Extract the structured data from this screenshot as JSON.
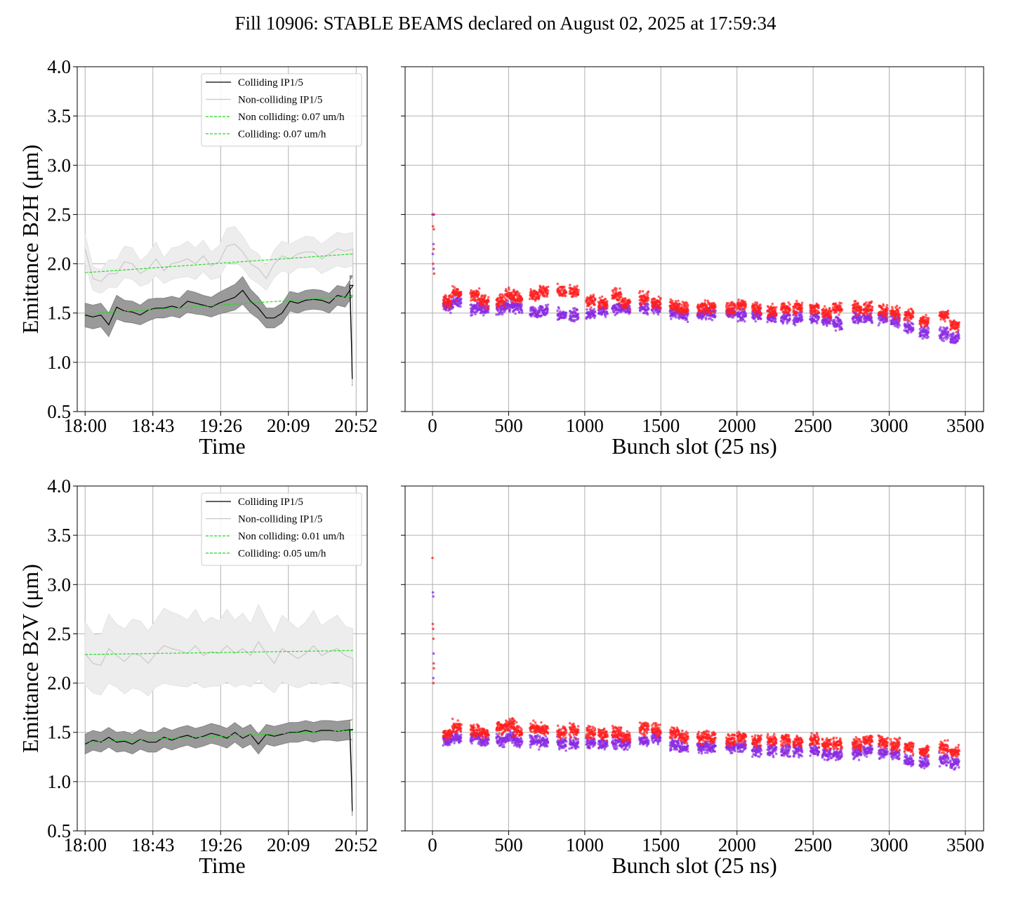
{
  "figure_title": "Fill 10906: STABLE BEAMS declared on August 02, 2025 at 17:59:34",
  "colors": {
    "colliding": "#000000",
    "colliding_band": "#9a9a9a",
    "noncolliding": "#c8c8c8",
    "noncolliding_band": "#ededed",
    "fit": "#22dd22",
    "scatter_a": "#ff2020",
    "scatter_b": "#8a2be2",
    "grid": "#b0b0b0"
  },
  "chart_data": [
    {
      "type": "line",
      "panel": "top-left",
      "xlabel": "Time",
      "ylabel": "Emittance B2H (μm)",
      "ylim": [
        0.5,
        4.0
      ],
      "yticks": [
        "0.5",
        "1.0",
        "1.5",
        "2.0",
        "2.5",
        "3.0",
        "3.5",
        "4.0"
      ],
      "xticks": [
        "18:00",
        "18:43",
        "19:26",
        "20:09",
        "20:52"
      ],
      "xlim_minutes": [
        -5,
        179
      ],
      "tick_minutes": [
        0,
        43,
        86,
        129,
        172
      ],
      "grid": true,
      "legend_position": "upper-center",
      "legend": [
        "Colliding IP1/5",
        "Non-colliding IP1/5",
        "Non colliding: 0.07 um/h",
        "Colliding: 0.07 um/h"
      ],
      "series": [
        {
          "name": "Colliding IP1/5",
          "x_minutes": [
            0,
            5,
            10,
            15,
            20,
            25,
            30,
            35,
            40,
            45,
            50,
            55,
            60,
            65,
            70,
            75,
            80,
            85,
            90,
            95,
            100,
            105,
            110,
            115,
            120,
            125,
            130,
            135,
            140,
            145,
            150,
            155,
            160,
            165,
            170,
            168,
            169,
            169.5
          ],
          "y": [
            1.48,
            1.46,
            1.48,
            1.38,
            1.56,
            1.52,
            1.51,
            1.48,
            1.53,
            1.55,
            1.55,
            1.57,
            1.55,
            1.62,
            1.6,
            1.58,
            1.56,
            1.6,
            1.63,
            1.66,
            1.73,
            1.62,
            1.55,
            1.45,
            1.45,
            1.5,
            1.62,
            1.6,
            1.63,
            1.64,
            1.63,
            1.6,
            1.68,
            1.66,
            1.78,
            1.78,
            1.2,
            0.83
          ],
          "band": [
            0.12,
            0.12,
            0.12,
            0.12,
            0.12,
            0.11,
            0.11,
            0.1,
            0.11,
            0.1,
            0.1,
            0.1,
            0.1,
            0.11,
            0.11,
            0.1,
            0.1,
            0.11,
            0.12,
            0.13,
            0.14,
            0.12,
            0.11,
            0.1,
            0.1,
            0.1,
            0.1,
            0.1,
            0.1,
            0.1,
            0.1,
            0.1,
            0.1,
            0.1,
            0.1,
            0.1,
            0.1,
            0.07
          ]
        },
        {
          "name": "Non-colliding IP1/5",
          "x_minutes": [
            0,
            5,
            10,
            15,
            20,
            25,
            30,
            35,
            40,
            45,
            50,
            55,
            60,
            65,
            70,
            75,
            80,
            85,
            90,
            95,
            100,
            105,
            110,
            115,
            120,
            125,
            130,
            135,
            140,
            145,
            150,
            155,
            160,
            165,
            170,
            169.5
          ],
          "y": [
            2.15,
            1.85,
            1.82,
            1.9,
            1.9,
            2.02,
            2.0,
            1.9,
            1.95,
            2.05,
            1.93,
            2.0,
            2.02,
            2.05,
            2.0,
            2.08,
            1.98,
            2.02,
            2.18,
            2.2,
            2.12,
            2.0,
            1.95,
            1.85,
            2.0,
            2.08,
            2.05,
            2.1,
            2.12,
            2.12,
            2.05,
            2.1,
            2.15,
            2.13,
            2.15,
            0.78
          ],
          "band": [
            0.15,
            0.12,
            0.12,
            0.14,
            0.14,
            0.16,
            0.16,
            0.13,
            0.15,
            0.17,
            0.13,
            0.16,
            0.16,
            0.18,
            0.16,
            0.16,
            0.14,
            0.16,
            0.18,
            0.18,
            0.16,
            0.15,
            0.15,
            0.12,
            0.14,
            0.15,
            0.15,
            0.14,
            0.16,
            0.15,
            0.15,
            0.16,
            0.17,
            0.17,
            0.17,
            0.02
          ]
        }
      ],
      "fits": [
        {
          "name": "Non colliding: 0.07 um/h",
          "x_minutes": [
            0,
            170
          ],
          "y": [
            1.91,
            2.1
          ]
        },
        {
          "name": "Colliding: 0.07 um/h",
          "x_minutes": [
            0,
            170
          ],
          "y": [
            1.49,
            1.67
          ]
        }
      ]
    },
    {
      "type": "scatter",
      "panel": "top-right",
      "xlabel": "Bunch slot (25 ns)",
      "ylabel": "",
      "ylim": [
        0.5,
        4.0
      ],
      "xlim": [
        -180,
        3620
      ],
      "xticks": [
        0,
        500,
        1000,
        1500,
        2000,
        2500,
        3000,
        3500
      ],
      "grid": true,
      "trains": [
        {
          "x": 70,
          "red": 1.62,
          "purple": 1.57
        },
        {
          "x": 130,
          "red": 1.7,
          "purple": 1.62
        },
        {
          "x": 250,
          "red": 1.68,
          "purple": 1.55
        },
        {
          "x": 310,
          "red": 1.62,
          "purple": 1.55
        },
        {
          "x": 420,
          "red": 1.62,
          "purple": 1.55
        },
        {
          "x": 480,
          "red": 1.68,
          "purple": 1.58
        },
        {
          "x": 530,
          "red": 1.65,
          "purple": 1.55
        },
        {
          "x": 640,
          "red": 1.68,
          "purple": 1.5
        },
        {
          "x": 700,
          "red": 1.72,
          "purple": 1.52
        },
        {
          "x": 820,
          "red": 1.72,
          "purple": 1.48
        },
        {
          "x": 900,
          "red": 1.72,
          "purple": 1.48
        },
        {
          "x": 1010,
          "red": 1.62,
          "purple": 1.5
        },
        {
          "x": 1090,
          "red": 1.6,
          "purple": 1.52
        },
        {
          "x": 1180,
          "red": 1.68,
          "purple": 1.55
        },
        {
          "x": 1240,
          "red": 1.6,
          "purple": 1.55
        },
        {
          "x": 1360,
          "red": 1.65,
          "purple": 1.55
        },
        {
          "x": 1440,
          "red": 1.6,
          "purple": 1.55
        },
        {
          "x": 1560,
          "red": 1.58,
          "purple": 1.52
        },
        {
          "x": 1620,
          "red": 1.55,
          "purple": 1.48
        },
        {
          "x": 1740,
          "red": 1.55,
          "purple": 1.48
        },
        {
          "x": 1800,
          "red": 1.55,
          "purple": 1.5
        },
        {
          "x": 1930,
          "red": 1.55,
          "purple": 1.5
        },
        {
          "x": 2000,
          "red": 1.58,
          "purple": 1.48
        },
        {
          "x": 2100,
          "red": 1.55,
          "purple": 1.48
        },
        {
          "x": 2200,
          "red": 1.52,
          "purple": 1.45
        },
        {
          "x": 2290,
          "red": 1.55,
          "purple": 1.45
        },
        {
          "x": 2370,
          "red": 1.55,
          "purple": 1.45
        },
        {
          "x": 2480,
          "red": 1.55,
          "purple": 1.45
        },
        {
          "x": 2560,
          "red": 1.5,
          "purple": 1.42
        },
        {
          "x": 2630,
          "red": 1.55,
          "purple": 1.4
        },
        {
          "x": 2760,
          "red": 1.55,
          "purple": 1.45
        },
        {
          "x": 2830,
          "red": 1.55,
          "purple": 1.45
        },
        {
          "x": 2930,
          "red": 1.52,
          "purple": 1.45
        },
        {
          "x": 3010,
          "red": 1.5,
          "purple": 1.42
        },
        {
          "x": 3100,
          "red": 1.48,
          "purple": 1.35
        },
        {
          "x": 3200,
          "red": 1.42,
          "purple": 1.3
        },
        {
          "x": 3330,
          "red": 1.48,
          "purple": 1.28
        },
        {
          "x": 3400,
          "red": 1.38,
          "purple": 1.25
        }
      ]
    },
    {
      "type": "line",
      "panel": "bottom-left",
      "xlabel": "Time",
      "ylabel": "Emittance B2V (μm)",
      "ylim": [
        0.5,
        4.0
      ],
      "yticks": [
        "0.5",
        "1.0",
        "1.5",
        "2.0",
        "2.5",
        "3.0",
        "3.5",
        "4.0"
      ],
      "xticks": [
        "18:00",
        "18:43",
        "19:26",
        "20:09",
        "20:52"
      ],
      "xlim_minutes": [
        -5,
        179
      ],
      "tick_minutes": [
        0,
        43,
        86,
        129,
        172
      ],
      "grid": true,
      "legend_position": "upper-center",
      "legend": [
        "Colliding IP1/5",
        "Non-colliding IP1/5",
        "Non colliding: 0.01 um/h",
        "Colliding: 0.05 um/h"
      ],
      "series": [
        {
          "name": "Colliding IP1/5",
          "x_minutes": [
            0,
            5,
            10,
            15,
            20,
            25,
            30,
            35,
            40,
            45,
            50,
            55,
            60,
            65,
            70,
            75,
            80,
            85,
            90,
            95,
            100,
            105,
            110,
            115,
            120,
            125,
            130,
            135,
            140,
            145,
            150,
            155,
            160,
            165,
            170,
            168,
            169,
            169.5
          ],
          "y": [
            1.38,
            1.42,
            1.4,
            1.45,
            1.4,
            1.41,
            1.38,
            1.43,
            1.4,
            1.4,
            1.45,
            1.42,
            1.45,
            1.47,
            1.44,
            1.46,
            1.49,
            1.47,
            1.44,
            1.5,
            1.44,
            1.48,
            1.38,
            1.48,
            1.46,
            1.48,
            1.5,
            1.5,
            1.52,
            1.5,
            1.52,
            1.52,
            1.51,
            1.52,
            1.53,
            1.52,
            1.05,
            0.7
          ],
          "band": [
            0.1,
            0.1,
            0.1,
            0.1,
            0.1,
            0.1,
            0.1,
            0.1,
            0.1,
            0.1,
            0.1,
            0.1,
            0.1,
            0.1,
            0.1,
            0.1,
            0.1,
            0.1,
            0.1,
            0.1,
            0.1,
            0.1,
            0.1,
            0.1,
            0.1,
            0.1,
            0.1,
            0.1,
            0.1,
            0.1,
            0.1,
            0.1,
            0.1,
            0.1,
            0.1,
            0.1,
            0.08,
            0.05
          ]
        },
        {
          "name": "Non-colliding IP1/5",
          "x_minutes": [
            0,
            5,
            10,
            15,
            20,
            25,
            30,
            35,
            40,
            45,
            50,
            55,
            60,
            65,
            70,
            75,
            80,
            85,
            90,
            95,
            100,
            105,
            110,
            115,
            120,
            125,
            130,
            135,
            140,
            145,
            150,
            155,
            160,
            165,
            170,
            169.5
          ],
          "y": [
            2.3,
            2.2,
            2.18,
            2.35,
            2.28,
            2.22,
            2.3,
            2.28,
            2.2,
            2.3,
            2.38,
            2.35,
            2.33,
            2.3,
            2.38,
            2.28,
            2.32,
            2.3,
            2.38,
            2.3,
            2.35,
            2.28,
            2.42,
            2.3,
            2.2,
            2.35,
            2.3,
            2.25,
            2.3,
            2.38,
            2.28,
            2.32,
            2.35,
            2.28,
            2.25,
            0.72
          ],
          "band": [
            0.32,
            0.3,
            0.3,
            0.35,
            0.32,
            0.33,
            0.35,
            0.35,
            0.33,
            0.34,
            0.38,
            0.37,
            0.36,
            0.34,
            0.37,
            0.33,
            0.35,
            0.33,
            0.37,
            0.34,
            0.36,
            0.32,
            0.38,
            0.34,
            0.3,
            0.34,
            0.32,
            0.3,
            0.32,
            0.36,
            0.3,
            0.32,
            0.34,
            0.3,
            0.3,
            0.05
          ]
        }
      ],
      "fits": [
        {
          "name": "Non colliding: 0.01 um/h",
          "x_minutes": [
            0,
            170
          ],
          "y": [
            2.29,
            2.33
          ]
        },
        {
          "name": "Colliding: 0.05 um/h",
          "x_minutes": [
            0,
            170
          ],
          "y": [
            1.4,
            1.52
          ]
        }
      ]
    },
    {
      "type": "scatter",
      "panel": "bottom-right",
      "xlabel": "Bunch slot (25 ns)",
      "ylabel": "",
      "ylim": [
        0.5,
        4.0
      ],
      "xlim": [
        -180,
        3620
      ],
      "xticks": [
        0,
        500,
        1000,
        1500,
        2000,
        2500,
        3000,
        3500
      ],
      "grid": true,
      "trains": [
        {
          "x": 70,
          "red": 1.48,
          "purple": 1.42
        },
        {
          "x": 130,
          "red": 1.55,
          "purple": 1.45
        },
        {
          "x": 250,
          "red": 1.52,
          "purple": 1.45
        },
        {
          "x": 310,
          "red": 1.5,
          "purple": 1.42
        },
        {
          "x": 420,
          "red": 1.55,
          "purple": 1.42
        },
        {
          "x": 480,
          "red": 1.58,
          "purple": 1.45
        },
        {
          "x": 530,
          "red": 1.52,
          "purple": 1.42
        },
        {
          "x": 640,
          "red": 1.55,
          "purple": 1.42
        },
        {
          "x": 700,
          "red": 1.52,
          "purple": 1.4
        },
        {
          "x": 820,
          "red": 1.5,
          "purple": 1.38
        },
        {
          "x": 900,
          "red": 1.52,
          "purple": 1.38
        },
        {
          "x": 1010,
          "red": 1.5,
          "purple": 1.4
        },
        {
          "x": 1090,
          "red": 1.48,
          "purple": 1.38
        },
        {
          "x": 1180,
          "red": 1.5,
          "purple": 1.4
        },
        {
          "x": 1240,
          "red": 1.45,
          "purple": 1.38
        },
        {
          "x": 1360,
          "red": 1.55,
          "purple": 1.42
        },
        {
          "x": 1440,
          "red": 1.52,
          "purple": 1.45
        },
        {
          "x": 1560,
          "red": 1.5,
          "purple": 1.38
        },
        {
          "x": 1620,
          "red": 1.45,
          "purple": 1.35
        },
        {
          "x": 1740,
          "red": 1.45,
          "purple": 1.35
        },
        {
          "x": 1800,
          "red": 1.45,
          "purple": 1.35
        },
        {
          "x": 1930,
          "red": 1.42,
          "purple": 1.35
        },
        {
          "x": 2000,
          "red": 1.45,
          "purple": 1.35
        },
        {
          "x": 2100,
          "red": 1.42,
          "purple": 1.32
        },
        {
          "x": 2200,
          "red": 1.42,
          "purple": 1.32
        },
        {
          "x": 2290,
          "red": 1.42,
          "purple": 1.32
        },
        {
          "x": 2370,
          "red": 1.4,
          "purple": 1.32
        },
        {
          "x": 2480,
          "red": 1.42,
          "purple": 1.32
        },
        {
          "x": 2560,
          "red": 1.38,
          "purple": 1.28
        },
        {
          "x": 2630,
          "red": 1.38,
          "purple": 1.28
        },
        {
          "x": 2760,
          "red": 1.38,
          "purple": 1.3
        },
        {
          "x": 2830,
          "red": 1.42,
          "purple": 1.32
        },
        {
          "x": 2930,
          "red": 1.4,
          "purple": 1.3
        },
        {
          "x": 3010,
          "red": 1.38,
          "purple": 1.28
        },
        {
          "x": 3100,
          "red": 1.35,
          "purple": 1.22
        },
        {
          "x": 3200,
          "red": 1.3,
          "purple": 1.2
        },
        {
          "x": 3330,
          "red": 1.35,
          "purple": 1.22
        },
        {
          "x": 3400,
          "red": 1.3,
          "purple": 1.18
        }
      ]
    }
  ]
}
